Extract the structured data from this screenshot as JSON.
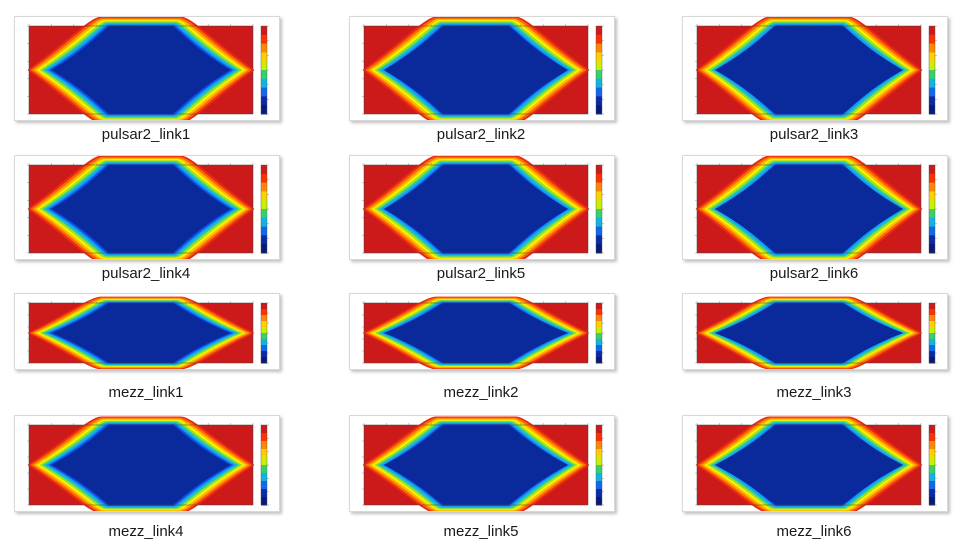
{
  "files": [
    {
      "name": "pulsar2_link1",
      "kind": "pulsar"
    },
    {
      "name": "pulsar2_link2",
      "kind": "pulsar"
    },
    {
      "name": "pulsar2_link3",
      "kind": "pulsar"
    },
    {
      "name": "pulsar2_link4",
      "kind": "pulsar"
    },
    {
      "name": "pulsar2_link5",
      "kind": "pulsar"
    },
    {
      "name": "pulsar2_link6",
      "kind": "pulsar"
    },
    {
      "name": "mezz_link1",
      "kind": "mezz"
    },
    {
      "name": "mezz_link2",
      "kind": "mezz"
    },
    {
      "name": "mezz_link3",
      "kind": "mezz"
    },
    {
      "name": "mezz_link4",
      "kind": "mezz"
    },
    {
      "name": "mezz_link5",
      "kind": "mezz"
    },
    {
      "name": "mezz_link6",
      "kind": "mezz"
    }
  ],
  "colors": {
    "contour": [
      "#cc1a1a",
      "#e82a14",
      "#ff6a00",
      "#ffb400",
      "#f4f400",
      "#9fe020",
      "#26c8b4",
      "#12a0f0",
      "#1150e8",
      "#0a2a9c"
    ],
    "colorbar": [
      "#cc1a1a",
      "#ff3000",
      "#ff8800",
      "#ffd000",
      "#c8f000",
      "#36d070",
      "#10b4e0",
      "#1068f0",
      "#0a2aa8",
      "#061a78"
    ]
  }
}
